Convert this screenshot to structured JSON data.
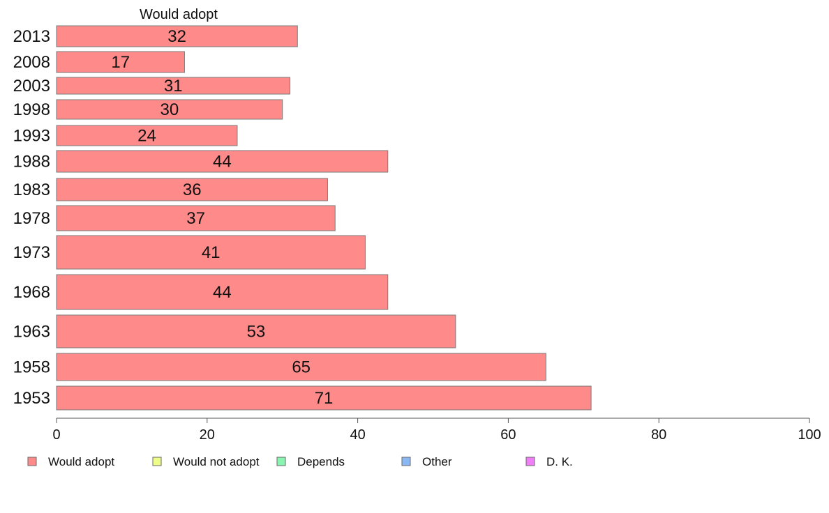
{
  "chart_data": {
    "type": "bar",
    "orientation": "horizontal",
    "series_title": "Would adopt",
    "categories": [
      "2013",
      "2008",
      "2003",
      "1998",
      "1993",
      "1988",
      "1983",
      "1978",
      "1973",
      "1968",
      "1963",
      "1958",
      "1953"
    ],
    "series": [
      {
        "name": "Would adopt",
        "values": [
          32,
          17,
          31,
          30,
          24,
          44,
          36,
          37,
          41,
          44,
          53,
          65,
          71
        ]
      }
    ],
    "data_labels": [
      "32",
      "17",
      "31",
      "30",
      "24",
      "44",
      "36",
      "37",
      "41",
      "44",
      "53",
      "65",
      "71"
    ],
    "xlim": [
      0,
      100
    ],
    "x_ticks": [
      "0",
      "20",
      "40",
      "60",
      "80",
      "100"
    ],
    "grid": false,
    "legend_position": "bottom",
    "legend": [
      {
        "label": "Would adopt",
        "color": "#ff8a8a"
      },
      {
        "label": "Would not adopt",
        "color": "#eefc8a"
      },
      {
        "label": "Depends",
        "color": "#8af5b0"
      },
      {
        "label": "Other",
        "color": "#8ab8f5"
      },
      {
        "label": "D. K.",
        "color": "#f07ef7"
      }
    ]
  }
}
